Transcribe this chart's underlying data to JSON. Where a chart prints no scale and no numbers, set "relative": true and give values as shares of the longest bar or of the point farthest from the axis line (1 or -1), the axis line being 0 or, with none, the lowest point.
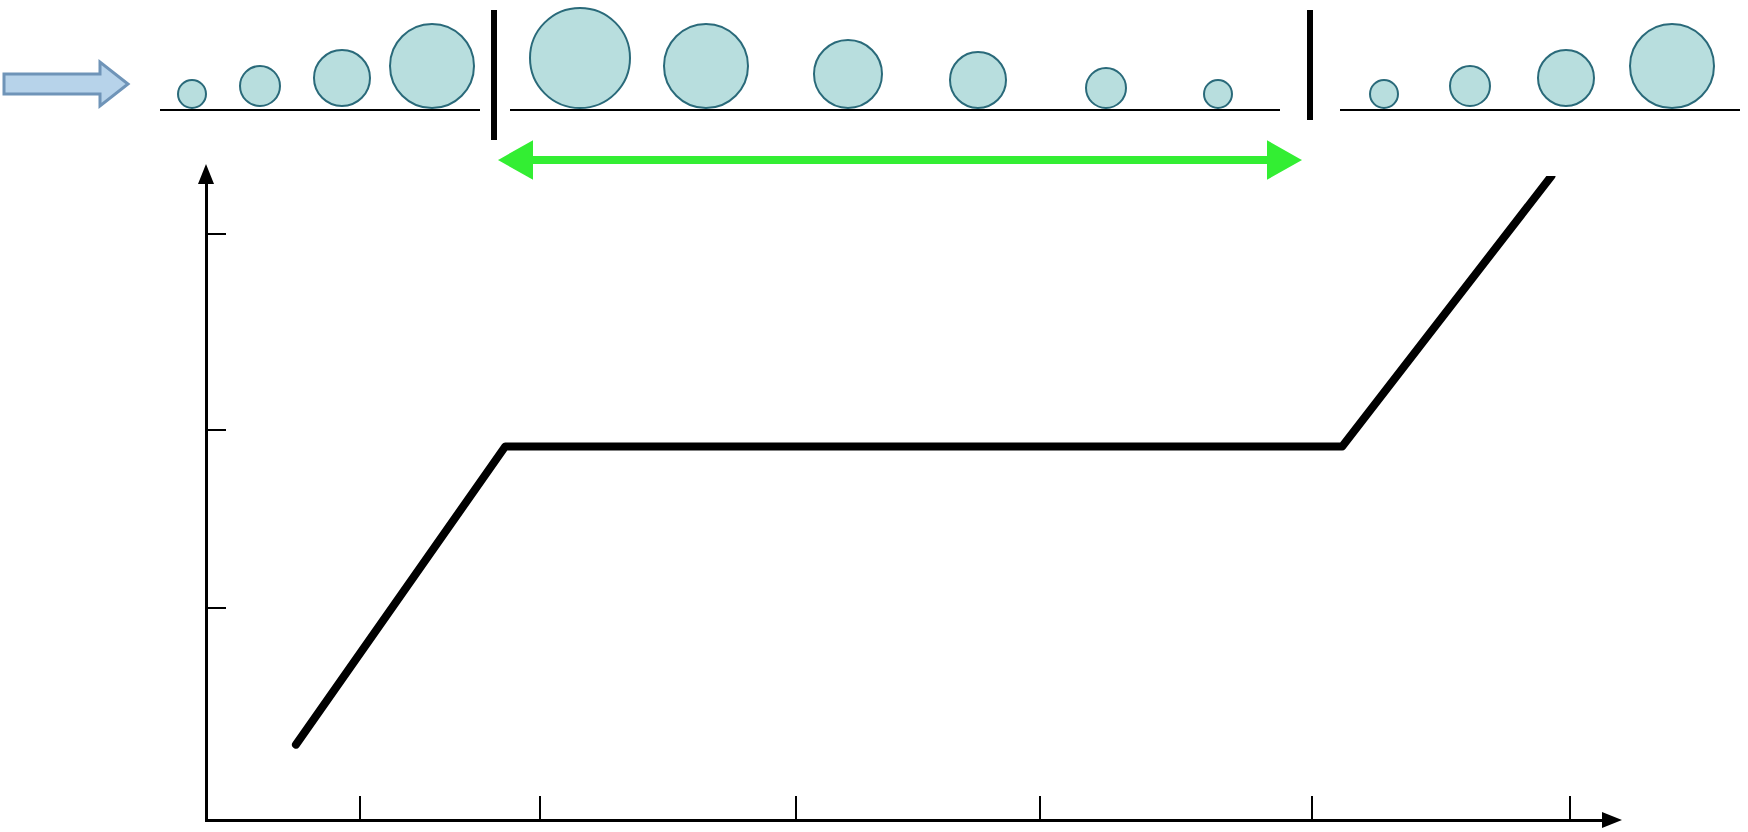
{
  "chart_data": {
    "type": "line",
    "relative": true,
    "categories": [
      null,
      null,
      null,
      null,
      null,
      null,
      null
    ],
    "series": [
      {
        "color": "#000000",
        "values": [
          0.117,
          0.58,
          0.58,
          0.58,
          0.58,
          0.58,
          1
        ]
      }
    ],
    "grid": false,
    "legend": false,
    "marker": "none",
    "line_style": "solid"
  }
}
